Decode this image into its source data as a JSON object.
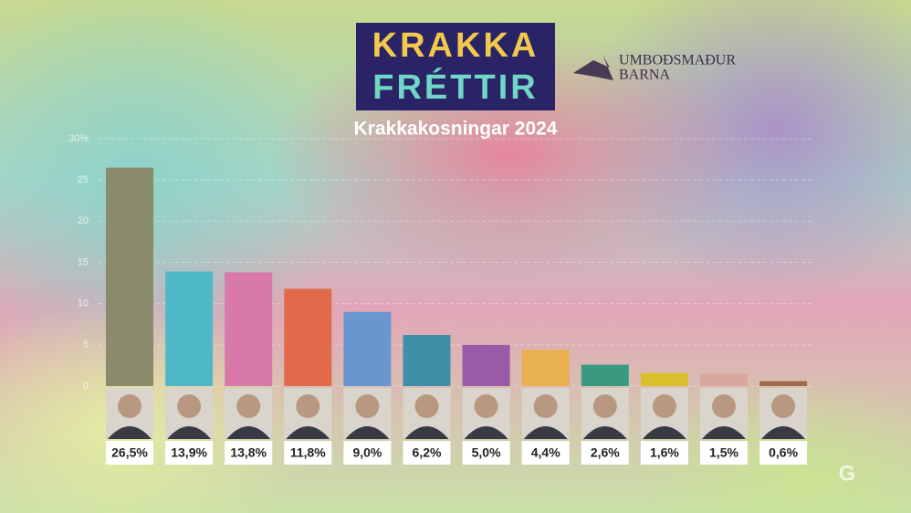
{
  "logo": {
    "line1": "KRAKKA",
    "line2": "FRÉTTIR"
  },
  "partner": {
    "line1": "UMBOÐSMAÐUR",
    "line2": "BARNA"
  },
  "watermark": "G",
  "chart_data": {
    "type": "bar",
    "title": "Krakkakosningar 2024",
    "values": [
      26.5,
      13.9,
      13.8,
      11.8,
      9.0,
      6.2,
      5.0,
      4.4,
      2.6,
      1.6,
      1.5,
      0.6
    ],
    "value_labels": [
      "26,5%",
      "13,9%",
      "13,8%",
      "11,8%",
      "9,0%",
      "6,2%",
      "5,0%",
      "4,4%",
      "2,6%",
      "1,6%",
      "1,5%",
      "0,6%"
    ],
    "colors": [
      "#8a8a6c",
      "#4fb8c8",
      "#d77aaa",
      "#e06a4a",
      "#6a96d0",
      "#3f8fa8",
      "#9a5aa8",
      "#e8b050",
      "#3a9a80",
      "#dbbf2a",
      "#d8a8a0",
      "#a06a50"
    ],
    "ylim": [
      0,
      30
    ],
    "yticks": [
      0,
      5,
      10,
      15,
      20,
      25,
      {
        "value": 30,
        "label": "30%"
      }
    ],
    "grid": true
  }
}
